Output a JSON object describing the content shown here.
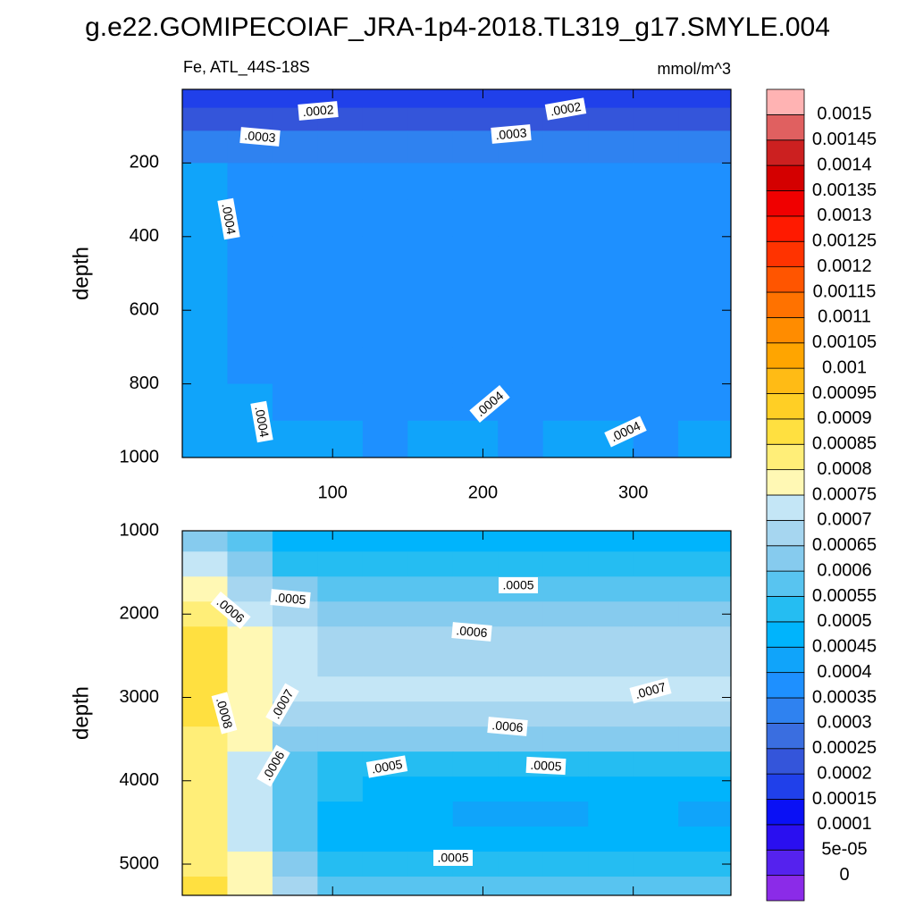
{
  "title": "g.e22.GOMIPECOIAF_JRA-1p4-2018.TL319_g17.SMYLE.004",
  "colorbar": {
    "levels": [
      0,
      {
        "value": 5e-05,
        "label": "5e-05"
      },
      0.0001,
      0.00015,
      0.0002,
      0.00025,
      0.0003,
      0.00035,
      0.0004,
      0.00045,
      0.0005,
      0.00055,
      0.0006,
      0.00065,
      0.0007,
      0.00075,
      0.0008,
      0.00085,
      0.0009,
      0.00095,
      0.001,
      0.00105,
      0.0011,
      0.00115,
      0.0012,
      0.00125,
      0.0013,
      0.00135,
      0.0014,
      0.00145,
      0.0015
    ],
    "colors": [
      "#8b2be8",
      "#5522ee",
      "#2a0ff0",
      "#0a10f5",
      "#2040ea",
      "#3455da",
      "#3a6ee0",
      "#2f82f0",
      "#1e90ff",
      "#10a4fa",
      "#00b4fc",
      "#25bdf2",
      "#58c4f0",
      "#86cbee",
      "#a6d6f0",
      "#c4e6f6",
      "#fff8b4",
      "#ffee78",
      "#ffe040",
      "#ffcf25",
      "#ffbb15",
      "#ffa500",
      "#ff8c00",
      "#ff7200",
      "#ff5500",
      "#ff3300",
      "#ff1a00",
      "#f00000",
      "#d40000",
      "#cc2020",
      "#e06060",
      "#ffb3b3"
    ]
  },
  "chart_data": [
    {
      "type": "contour",
      "subtitle_left": "Fe, ATL_44S-18S",
      "subtitle_right": "mmol/m^3",
      "ylabel": "depth",
      "xlim": [
        0,
        365
      ],
      "xticks": [
        100,
        200,
        300
      ],
      "show_xtick_labels": true,
      "ylim": [
        0,
        1000
      ],
      "yticks": [
        200,
        400,
        600,
        800,
        1000
      ],
      "reverse_y": true,
      "x": [
        15,
        45,
        75,
        105,
        135,
        165,
        195,
        225,
        255,
        285,
        315,
        345
      ],
      "y": [
        25,
        75,
        150,
        250,
        350,
        450,
        550,
        650,
        750,
        850,
        950
      ],
      "z": [
        [
          0.00018,
          0.00018,
          0.00018,
          0.00018,
          0.00018,
          0.00018,
          0.00018,
          0.00018,
          0.00018,
          0.00018,
          0.00018,
          0.00018
        ],
        [
          0.00024,
          0.00024,
          0.00024,
          0.00024,
          0.00024,
          0.00024,
          0.00024,
          0.00024,
          0.00024,
          0.00024,
          0.00024,
          0.00024
        ],
        [
          0.00032,
          0.00032,
          0.00032,
          0.00032,
          0.00032,
          0.00032,
          0.00032,
          0.00032,
          0.00032,
          0.00032,
          0.00032,
          0.00032
        ],
        [
          0.00041,
          0.00038,
          0.00038,
          0.00038,
          0.00038,
          0.00038,
          0.00038,
          0.00038,
          0.00038,
          0.00038,
          0.00038,
          0.00038
        ],
        [
          0.00042,
          0.00038,
          0.00038,
          0.00038,
          0.00038,
          0.00038,
          0.00038,
          0.00038,
          0.00038,
          0.00038,
          0.00038,
          0.00038
        ],
        [
          0.00042,
          0.00038,
          0.00038,
          0.00038,
          0.00038,
          0.00038,
          0.00038,
          0.00038,
          0.00038,
          0.00038,
          0.00038,
          0.00038
        ],
        [
          0.00042,
          0.00038,
          0.00038,
          0.00038,
          0.00038,
          0.00038,
          0.00038,
          0.00038,
          0.00038,
          0.00038,
          0.00038,
          0.00038
        ],
        [
          0.00042,
          0.00038,
          0.00038,
          0.00038,
          0.00038,
          0.00038,
          0.00038,
          0.00038,
          0.00038,
          0.00038,
          0.00038,
          0.00038
        ],
        [
          0.00042,
          0.00038,
          0.00038,
          0.00038,
          0.00038,
          0.00038,
          0.00038,
          0.00038,
          0.00038,
          0.00038,
          0.00038,
          0.00038
        ],
        [
          0.00043,
          0.00041,
          0.00038,
          0.00038,
          0.00039,
          0.00038,
          0.00038,
          0.00038,
          0.00038,
          0.00038,
          0.00038,
          0.00038
        ],
        [
          0.00044,
          0.00041,
          0.0004,
          0.0004,
          0.00038,
          0.0004,
          0.0004,
          0.00038,
          0.00041,
          0.0004,
          0.00039,
          0.0004
        ]
      ],
      "contour_labels": [
        ".0002",
        ".0002",
        ".0003",
        ".0003",
        ".0004",
        ".0004",
        ".0004",
        ".0004"
      ]
    },
    {
      "type": "contour",
      "ylabel": "depth",
      "xlim": [
        0,
        365
      ],
      "xticks": [
        100,
        200,
        300
      ],
      "show_xtick_labels": false,
      "ylim": [
        1000,
        5375
      ],
      "yticks": [
        1000,
        2000,
        3000,
        4000,
        5000
      ],
      "reverse_y": true,
      "x": [
        15,
        45,
        75,
        105,
        135,
        165,
        195,
        225,
        255,
        285,
        315,
        345
      ],
      "y": [
        1100,
        1400,
        1700,
        2000,
        2300,
        2600,
        2900,
        3200,
        3500,
        3800,
        4100,
        4400,
        4700,
        5000,
        5300
      ],
      "z": [
        [
          0.0006,
          0.00055,
          0.00048,
          0.00046,
          0.00046,
          0.00046,
          0.00046,
          0.00046,
          0.00046,
          0.00046,
          0.00046,
          0.00046
        ],
        [
          0.0007,
          0.0006,
          0.00054,
          0.00051,
          0.00051,
          0.00051,
          0.00051,
          0.00051,
          0.00051,
          0.00051,
          0.00051,
          0.00051
        ],
        [
          0.00076,
          0.00068,
          0.00062,
          0.00056,
          0.00056,
          0.00056,
          0.00056,
          0.00056,
          0.00056,
          0.00056,
          0.00056,
          0.00056
        ],
        [
          0.00082,
          0.00073,
          0.00068,
          0.0006,
          0.0006,
          0.0006,
          0.0006,
          0.0006,
          0.0006,
          0.0006,
          0.0006,
          0.0006
        ],
        [
          0.00085,
          0.00076,
          0.0007,
          0.00066,
          0.00066,
          0.00066,
          0.00066,
          0.00066,
          0.00066,
          0.00066,
          0.00066,
          0.00066
        ],
        [
          0.00086,
          0.00077,
          0.00072,
          0.00069,
          0.00069,
          0.00069,
          0.00069,
          0.00069,
          0.00069,
          0.00069,
          0.00069,
          0.00069
        ],
        [
          0.00086,
          0.00077,
          0.00072,
          0.0007,
          0.0007,
          0.0007,
          0.0007,
          0.0007,
          0.0007,
          0.00071,
          0.00071,
          0.00071
        ],
        [
          0.00085,
          0.00076,
          0.00068,
          0.00066,
          0.00066,
          0.00066,
          0.00066,
          0.00066,
          0.00066,
          0.00066,
          0.00066,
          0.00066
        ],
        [
          0.00084,
          0.00075,
          0.00062,
          0.0006,
          0.0006,
          0.0006,
          0.0006,
          0.0006,
          0.0006,
          0.0006,
          0.0006,
          0.0006
        ],
        [
          0.00083,
          0.00074,
          0.00058,
          0.00054,
          0.00054,
          0.00054,
          0.00054,
          0.00054,
          0.00054,
          0.00054,
          0.00054,
          0.00054
        ],
        [
          0.00082,
          0.00073,
          0.00056,
          0.0005,
          0.00048,
          0.00048,
          0.00048,
          0.00048,
          0.00048,
          0.00048,
          0.00048,
          0.00048
        ],
        [
          0.00082,
          0.00073,
          0.00056,
          0.00049,
          0.00047,
          0.00047,
          0.00044,
          0.00044,
          0.00044,
          0.00047,
          0.00047,
          0.00044
        ],
        [
          0.00083,
          0.00074,
          0.00058,
          0.00048,
          0.00048,
          0.00048,
          0.00048,
          0.00048,
          0.00048,
          0.00048,
          0.00048,
          0.00048
        ],
        [
          0.00084,
          0.00076,
          0.00062,
          0.00052,
          0.00052,
          0.00052,
          0.00052,
          0.00052,
          0.00052,
          0.00052,
          0.00052,
          0.00052
        ],
        [
          0.00085,
          0.00077,
          0.00066,
          0.00056,
          0.00056,
          0.00056,
          0.00056,
          0.00056,
          0.00056,
          0.00056,
          0.00056,
          0.00056
        ]
      ],
      "contour_labels": [
        ".0005",
        ".0005",
        ".0006",
        ".0006",
        ".0008",
        ".0007",
        ".0007",
        ".0006",
        ".0005",
        ".0005",
        ".0006",
        ".0005"
      ]
    }
  ]
}
